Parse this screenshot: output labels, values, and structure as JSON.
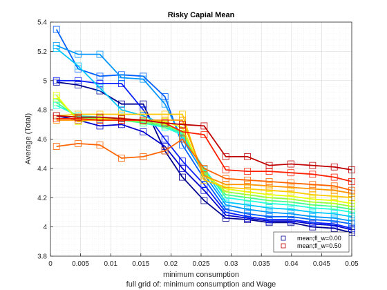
{
  "chart_data": {
    "type": "line",
    "title": "Risky Capial Mean",
    "xlabel": "minimum consumption",
    "ylabel": "Average (Total)",
    "subtitle": "full grid of: minimum consumption and Wage",
    "xlim": [
      0,
      0.05
    ],
    "ylim": [
      3.8,
      5.4
    ],
    "x_ticks": [
      "0",
      "0.005",
      "0.01",
      "0.015",
      "0.02",
      "0.025",
      "0.03",
      "0.035",
      "0.04",
      "0.045",
      "0.05"
    ],
    "y_ticks": [
      "3.8",
      "4",
      "4.2",
      "4.4",
      "4.6",
      "4.8",
      "5",
      "5.2",
      "5.4"
    ],
    "grid": true,
    "minor_grid": true,
    "legend_position": "bottom-right",
    "legend": [
      {
        "label": "mean;fl_w=0.00",
        "color": "#00008f"
      },
      {
        "label": "mean;fl_w=0.50",
        "color": "#c00000"
      }
    ],
    "marker": "square",
    "x": [
      0.001,
      0.0046,
      0.0082,
      0.0118,
      0.0154,
      0.019,
      0.0219,
      0.0255,
      0.0291,
      0.0327,
      0.0363,
      0.0399,
      0.0435,
      0.0471,
      0.05
    ],
    "series": [
      {
        "color": "#00008f",
        "values": [
          4.99,
          4.97,
          4.93,
          4.84,
          4.84,
          4.52,
          4.34,
          4.18,
          4.06,
          4.05,
          4.03,
          4.03,
          4.0,
          3.99,
          3.96
        ]
      },
      {
        "color": "#0000cc",
        "values": [
          4.76,
          4.73,
          4.69,
          4.7,
          4.65,
          4.55,
          4.4,
          4.25,
          4.08,
          4.06,
          4.04,
          4.04,
          4.02,
          4.01,
          3.98
        ]
      },
      {
        "color": "#0a20ff",
        "values": [
          5.0,
          5.0,
          4.98,
          4.98,
          4.8,
          4.6,
          4.45,
          4.29,
          4.1,
          4.07,
          4.05,
          4.05,
          4.03,
          4.02,
          3.99
        ]
      },
      {
        "color": "#0060ff",
        "values": [
          5.35,
          5.08,
          5.03,
          5.04,
          5.03,
          4.89,
          4.56,
          4.33,
          4.12,
          4.09,
          4.07,
          4.07,
          4.05,
          4.04,
          4.02
        ]
      },
      {
        "color": "#0096ff",
        "values": [
          5.24,
          5.18,
          5.18,
          5.02,
          5.01,
          4.84,
          4.6,
          4.36,
          4.15,
          4.12,
          4.1,
          4.09,
          4.07,
          4.06,
          4.04
        ]
      },
      {
        "color": "#00c8ff",
        "values": [
          5.22,
          5.1,
          4.95,
          4.8,
          4.76,
          4.7,
          4.62,
          4.39,
          4.17,
          4.15,
          4.13,
          4.12,
          4.1,
          4.09,
          4.07
        ]
      },
      {
        "color": "#20ffe0",
        "values": [
          4.83,
          4.76,
          4.75,
          4.74,
          4.71,
          4.68,
          4.63,
          4.4,
          4.2,
          4.18,
          4.16,
          4.15,
          4.13,
          4.12,
          4.1
        ]
      },
      {
        "color": "#40ff90",
        "values": [
          4.85,
          4.75,
          4.74,
          4.73,
          4.71,
          4.69,
          4.64,
          4.38,
          4.22,
          4.2,
          4.18,
          4.17,
          4.15,
          4.14,
          4.12
        ]
      },
      {
        "color": "#90ff40",
        "values": [
          4.88,
          4.74,
          4.74,
          4.73,
          4.72,
          4.7,
          4.65,
          4.37,
          4.24,
          4.22,
          4.2,
          4.19,
          4.17,
          4.16,
          4.14
        ]
      },
      {
        "color": "#e8ff00",
        "values": [
          4.9,
          4.72,
          4.74,
          4.74,
          4.73,
          4.72,
          4.68,
          4.35,
          4.26,
          4.24,
          4.22,
          4.21,
          4.19,
          4.18,
          4.16
        ]
      },
      {
        "color": "#ffc800",
        "values": [
          4.76,
          4.77,
          4.77,
          4.77,
          4.77,
          4.77,
          4.77,
          4.32,
          4.27,
          4.26,
          4.25,
          4.24,
          4.22,
          4.21,
          4.2
        ]
      },
      {
        "color": "#ff9600",
        "values": [
          4.73,
          4.73,
          4.73,
          4.73,
          4.73,
          4.73,
          4.73,
          4.35,
          4.29,
          4.29,
          4.28,
          4.27,
          4.26,
          4.25,
          4.23
        ]
      },
      {
        "color": "#ff6400",
        "values": [
          4.55,
          4.57,
          4.56,
          4.47,
          4.48,
          4.52,
          4.6,
          4.4,
          4.33,
          4.32,
          4.31,
          4.3,
          4.29,
          4.28,
          4.25
        ]
      },
      {
        "color": "#ff2000",
        "values": [
          4.74,
          4.74,
          4.73,
          4.73,
          4.73,
          4.71,
          4.65,
          4.63,
          4.39,
          4.38,
          4.38,
          4.37,
          4.36,
          4.34,
          4.31
        ]
      },
      {
        "color": "#c00000",
        "values": [
          4.76,
          4.75,
          4.75,
          4.74,
          4.73,
          4.71,
          4.7,
          4.69,
          4.48,
          4.48,
          4.42,
          4.43,
          4.42,
          4.41,
          4.39
        ]
      }
    ]
  }
}
